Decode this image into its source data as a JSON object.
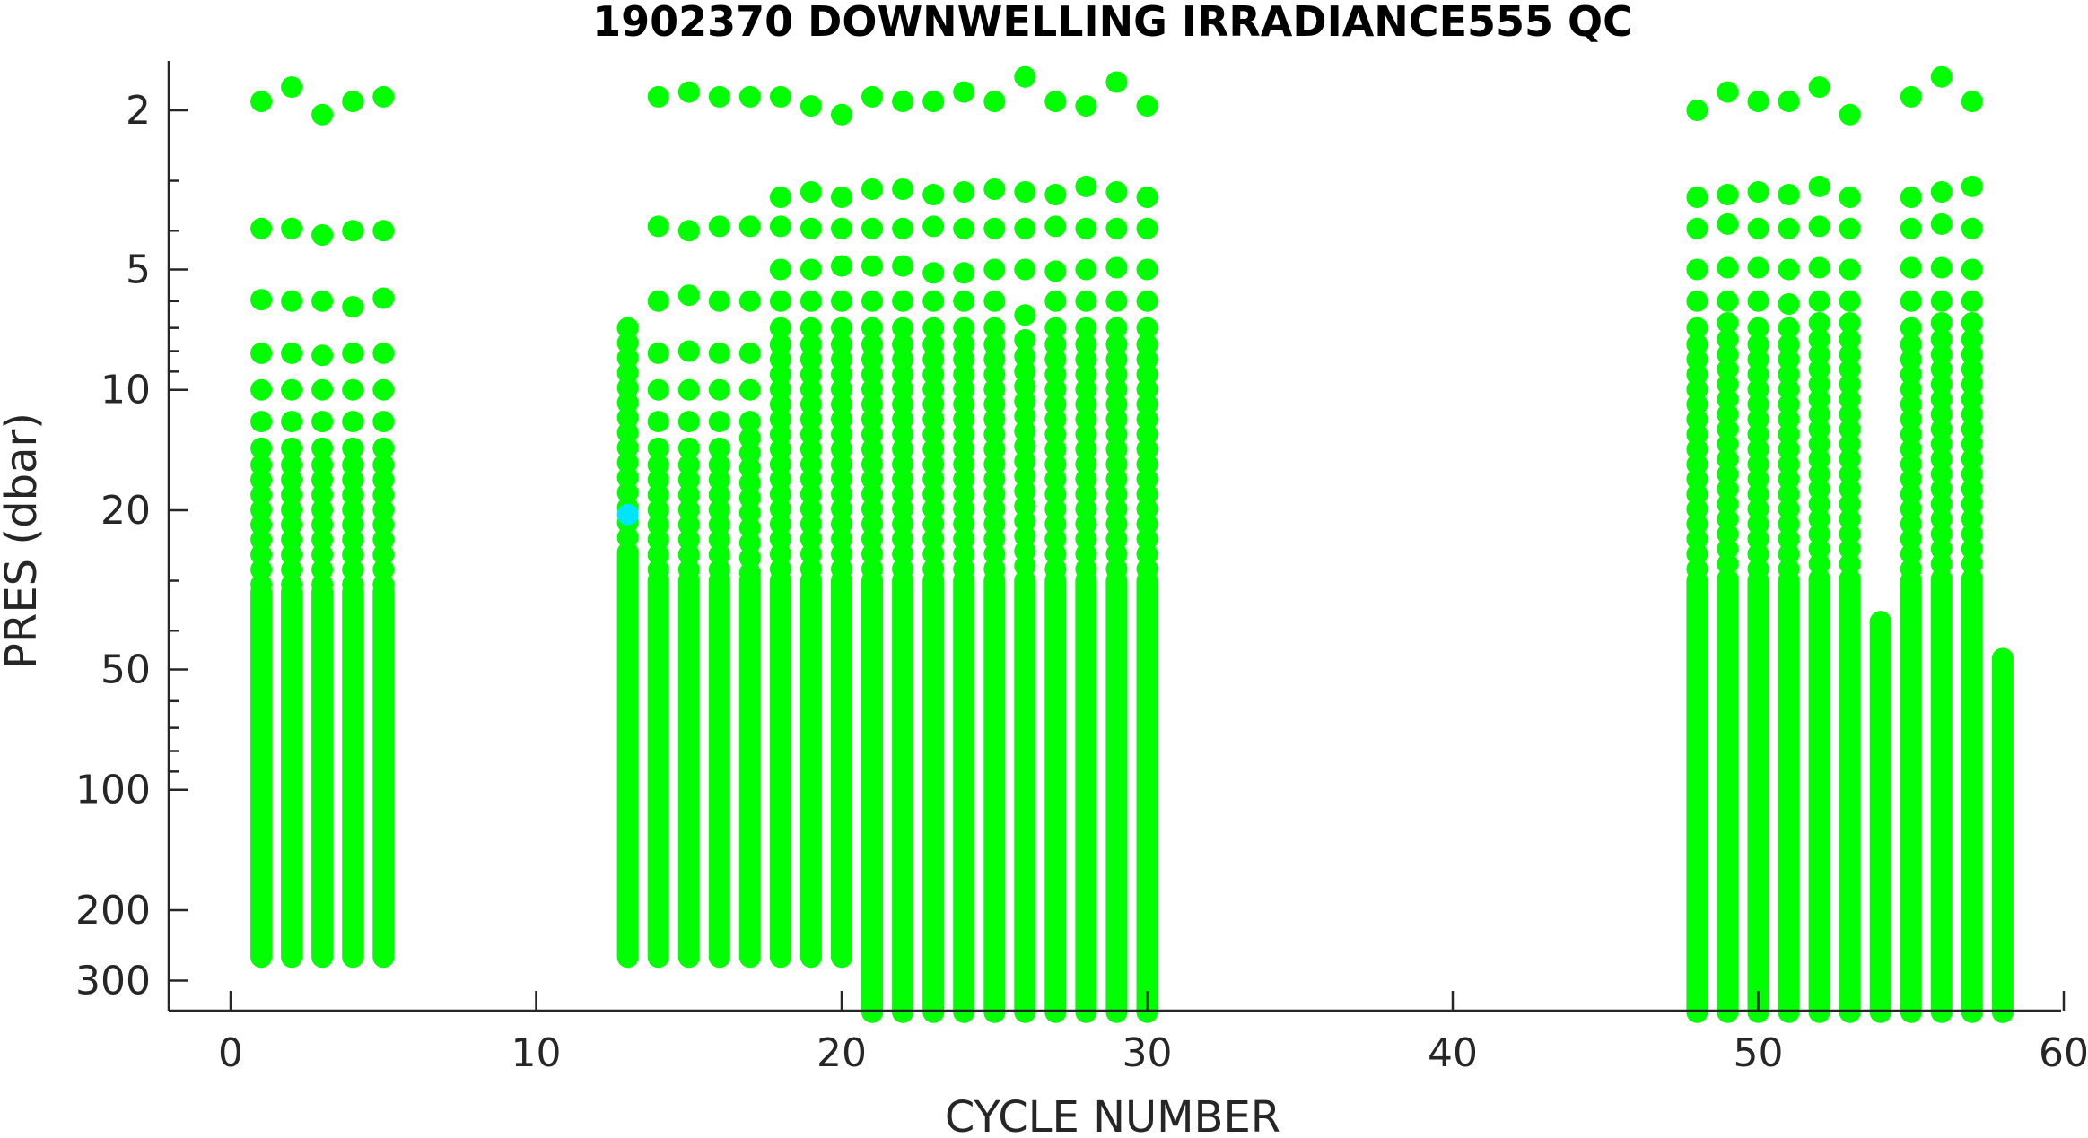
{
  "colors": {
    "good": "#00ff00",
    "probably_good": "#00e5ff",
    "axis": "#262626"
  },
  "chart_data": {
    "type": "scatter",
    "title": "1902370  DOWNWELLING IRRADIANCE555 QC",
    "xlabel": "CYCLE NUMBER",
    "ylabel": "PRES (dbar)",
    "xlim": [
      -2,
      60
    ],
    "ylim": [
      1.5,
      380
    ],
    "y_scale": "log",
    "y_reversed": true,
    "xticks": [
      0,
      10,
      20,
      30,
      40,
      50,
      60
    ],
    "yticks": [
      2,
      5,
      10,
      20,
      50,
      100,
      200,
      300
    ],
    "grid": false,
    "legend": "none",
    "shallow_levels": [
      2,
      3.3,
      4,
      5,
      6,
      7,
      8,
      9,
      10,
      11,
      12,
      13,
      14,
      15,
      16,
      17,
      18,
      19,
      20,
      21,
      22,
      24,
      26
    ],
    "profiles": [
      {
        "cycle": 1,
        "top": 1.9,
        "shallow": [
          3.95,
          5.95,
          8.1,
          10,
          12,
          14
        ],
        "bottom": 262
      },
      {
        "cycle": 2,
        "top": 1.75,
        "shallow": [
          3.95,
          6,
          8.1,
          10,
          12,
          14
        ],
        "bottom": 262
      },
      {
        "cycle": 3,
        "top": 2.05,
        "shallow": [
          4.1,
          6,
          8.2,
          10,
          12,
          14
        ],
        "bottom": 262
      },
      {
        "cycle": 4,
        "top": 1.9,
        "shallow": [
          4,
          6.2,
          8.1,
          10,
          12,
          14
        ],
        "bottom": 262
      },
      {
        "cycle": 5,
        "top": 1.85,
        "shallow": [
          4,
          5.9,
          8.1,
          10,
          12,
          14
        ],
        "bottom": 262
      },
      {
        "cycle": 13,
        "top": 7,
        "shallow": [],
        "bottom": 262,
        "qc2": [
          20.5
        ]
      },
      {
        "cycle": 14,
        "top": 1.85,
        "shallow": [
          3.9,
          6,
          8.1,
          10,
          12,
          14
        ],
        "bottom": 262
      },
      {
        "cycle": 15,
        "top": 1.8,
        "shallow": [
          4,
          5.8,
          8,
          10,
          12,
          14
        ],
        "bottom": 262
      },
      {
        "cycle": 16,
        "top": 1.85,
        "shallow": [
          3.9,
          6,
          8.1,
          10,
          12,
          14
        ],
        "bottom": 262
      },
      {
        "cycle": 17,
        "top": 1.85,
        "shallow": [
          3.9,
          6,
          8.1,
          10,
          12
        ],
        "bottom": 262
      },
      {
        "cycle": 18,
        "top": 1.85,
        "shallow": [
          3.3,
          3.9,
          5,
          6,
          7
        ],
        "bottom": 262
      },
      {
        "cycle": 19,
        "top": 1.95,
        "shallow": [
          3.2,
          3.95,
          5,
          6,
          7
        ],
        "bottom": 262
      },
      {
        "cycle": 20,
        "top": 2.05,
        "shallow": [
          3.3,
          3.95,
          4.9,
          6,
          7
        ],
        "bottom": 262
      },
      {
        "cycle": 21,
        "top": 1.85,
        "shallow": [
          3.15,
          3.95,
          4.9,
          6,
          7
        ],
        "bottom": 360
      },
      {
        "cycle": 22,
        "top": 1.9,
        "shallow": [
          3.15,
          3.95,
          4.9,
          6,
          7
        ],
        "bottom": 360
      },
      {
        "cycle": 23,
        "top": 1.9,
        "shallow": [
          3.25,
          3.9,
          5.1,
          6,
          7
        ],
        "bottom": 360
      },
      {
        "cycle": 24,
        "top": 1.8,
        "shallow": [
          3.2,
          3.95,
          5.1,
          6,
          7
        ],
        "bottom": 360
      },
      {
        "cycle": 25,
        "top": 1.9,
        "shallow": [
          3.15,
          3.95,
          5,
          6,
          7
        ],
        "bottom": 360
      },
      {
        "cycle": 26,
        "top": 1.65,
        "shallow": [
          3.2,
          3.95,
          5,
          6.5,
          7.5
        ],
        "bottom": 360
      },
      {
        "cycle": 27,
        "top": 1.9,
        "shallow": [
          3.25,
          3.9,
          5.05,
          6,
          7
        ],
        "bottom": 360
      },
      {
        "cycle": 28,
        "top": 1.95,
        "shallow": [
          3.1,
          3.95,
          5,
          6,
          7
        ],
        "bottom": 360
      },
      {
        "cycle": 29,
        "top": 1.7,
        "shallow": [
          3.2,
          3.95,
          4.95,
          6,
          7
        ],
        "bottom": 360
      },
      {
        "cycle": 30,
        "top": 1.95,
        "shallow": [
          3.3,
          3.95,
          5,
          6,
          7
        ],
        "bottom": 360
      },
      {
        "cycle": 48,
        "top": 2,
        "shallow": [
          3.3,
          3.95,
          5,
          6,
          7
        ],
        "bottom": 360
      },
      {
        "cycle": 49,
        "top": 1.8,
        "shallow": [
          3.25,
          3.85,
          4.95,
          6,
          6.8
        ],
        "bottom": 360
      },
      {
        "cycle": 50,
        "top": 1.9,
        "shallow": [
          3.2,
          3.95,
          4.95,
          6,
          7
        ],
        "bottom": 360
      },
      {
        "cycle": 51,
        "top": 1.9,
        "shallow": [
          3.25,
          3.95,
          5,
          6.1,
          7
        ],
        "bottom": 360
      },
      {
        "cycle": 52,
        "top": 1.75,
        "shallow": [
          3.1,
          3.9,
          4.95,
          6,
          6.8
        ],
        "bottom": 360
      },
      {
        "cycle": 53,
        "top": 2.05,
        "shallow": [
          3.3,
          3.95,
          5,
          6,
          6.8
        ],
        "bottom": 360
      },
      {
        "cycle": 54,
        "top": 38,
        "shallow": [],
        "bottom": 360
      },
      {
        "cycle": 55,
        "top": 1.85,
        "shallow": [
          3.3,
          3.95,
          4.95,
          6,
          7
        ],
        "bottom": 360
      },
      {
        "cycle": 56,
        "top": 1.65,
        "shallow": [
          3.2,
          3.85,
          4.95,
          6,
          6.8
        ],
        "bottom": 360
      },
      {
        "cycle": 57,
        "top": 1.9,
        "shallow": [
          3.1,
          3.95,
          5,
          6,
          6.8
        ],
        "bottom": 360
      },
      {
        "cycle": 58,
        "top": 47,
        "shallow": [],
        "bottom": 360
      }
    ]
  }
}
